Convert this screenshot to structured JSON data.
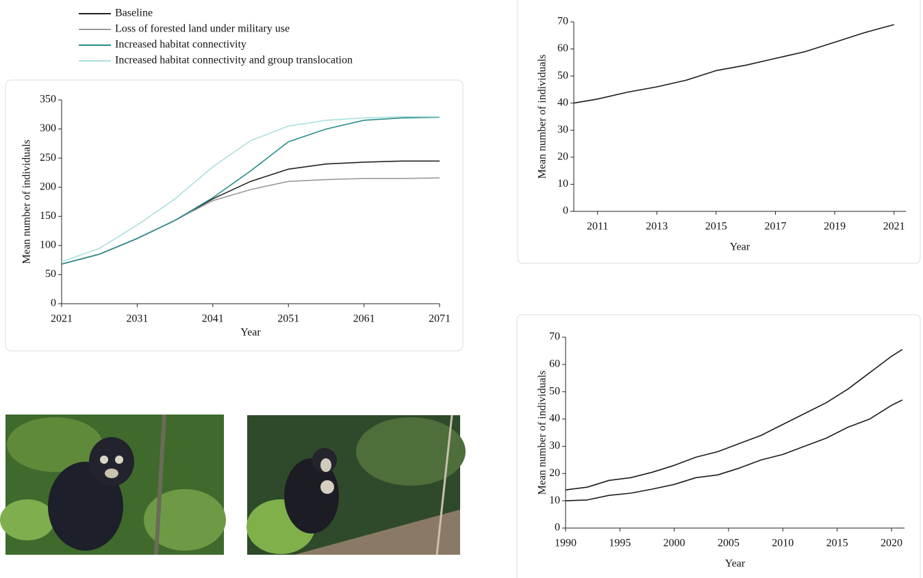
{
  "chart_data": [
    {
      "type": "line",
      "xlabel": "Year",
      "ylabel": "Mean number of individuals",
      "x": [
        2021,
        2026,
        2031,
        2036,
        2041,
        2046,
        2051,
        2056,
        2061,
        2066,
        2071
      ],
      "xlim": [
        2021,
        2071
      ],
      "xticks": [
        2021,
        2031,
        2041,
        2051,
        2061,
        2071
      ],
      "ylim": [
        0,
        350
      ],
      "yticks": [
        0,
        50,
        100,
        150,
        200,
        250,
        300,
        350
      ],
      "series": [
        {
          "name": "Baseline",
          "color": "#222222",
          "values": [
            68,
            85,
            112,
            143,
            180,
            210,
            231,
            240,
            243,
            245,
            245
          ]
        },
        {
          "name": "Loss of forested land under military use",
          "color": "#9a9a9a",
          "values": [
            68,
            85,
            112,
            143,
            177,
            196,
            210,
            213,
            215,
            215,
            216
          ]
        },
        {
          "name": "Increased habitat connectivity",
          "color": "#2a8a8a",
          "values": [
            68,
            85,
            112,
            143,
            182,
            228,
            278,
            300,
            315,
            319,
            320
          ]
        },
        {
          "name": "Increased habitat connectivity and group translocation",
          "color": "#a9dede",
          "values": [
            72,
            95,
            135,
            180,
            235,
            280,
            305,
            315,
            319,
            321,
            321
          ]
        }
      ]
    },
    {
      "type": "line",
      "xlabel": "Year",
      "ylabel": "Mean number of individuals",
      "x": [
        2010.2,
        2011,
        2012,
        2013,
        2014,
        2015,
        2016,
        2017,
        2018,
        2019,
        2020,
        2021
      ],
      "xlim": [
        2010.2,
        2021.4
      ],
      "xticks": [
        2011,
        2013,
        2015,
        2017,
        2019,
        2021
      ],
      "ylim": [
        0,
        70
      ],
      "yticks": [
        0,
        10,
        20,
        30,
        40,
        50,
        60,
        70
      ],
      "series": [
        {
          "color": "#1a1a1a",
          "values": [
            40,
            41.5,
            44,
            46,
            48.5,
            52,
            54,
            56.5,
            59,
            62.5,
            66,
            69
          ]
        }
      ]
    },
    {
      "type": "line",
      "xlabel": "Year",
      "ylabel": "Mean number of individuals",
      "x": [
        1990,
        1992,
        1994,
        1996,
        1998,
        2000,
        2002,
        2004,
        2006,
        2008,
        2010,
        2012,
        2014,
        2016,
        2018,
        2020,
        2021
      ],
      "xlim": [
        1990,
        2021.2
      ],
      "xticks": [
        1990,
        1995,
        2000,
        2005,
        2010,
        2015,
        2020
      ],
      "ylim": [
        0,
        70
      ],
      "yticks": [
        0,
        10,
        20,
        30,
        40,
        50,
        60,
        70
      ],
      "series": [
        {
          "color": "#1a1a1a",
          "values": [
            14,
            15,
            17.5,
            18.5,
            20.5,
            23,
            26,
            28,
            31,
            34,
            38,
            42,
            46,
            51,
            57,
            63,
            65.5
          ]
        },
        {
          "color": "#1a1a1a",
          "values": [
            10,
            10.3,
            12,
            12.8,
            14.3,
            16,
            18.5,
            19.5,
            22,
            25,
            27,
            30,
            33,
            37,
            40,
            45,
            47
          ]
        }
      ]
    }
  ]
}
